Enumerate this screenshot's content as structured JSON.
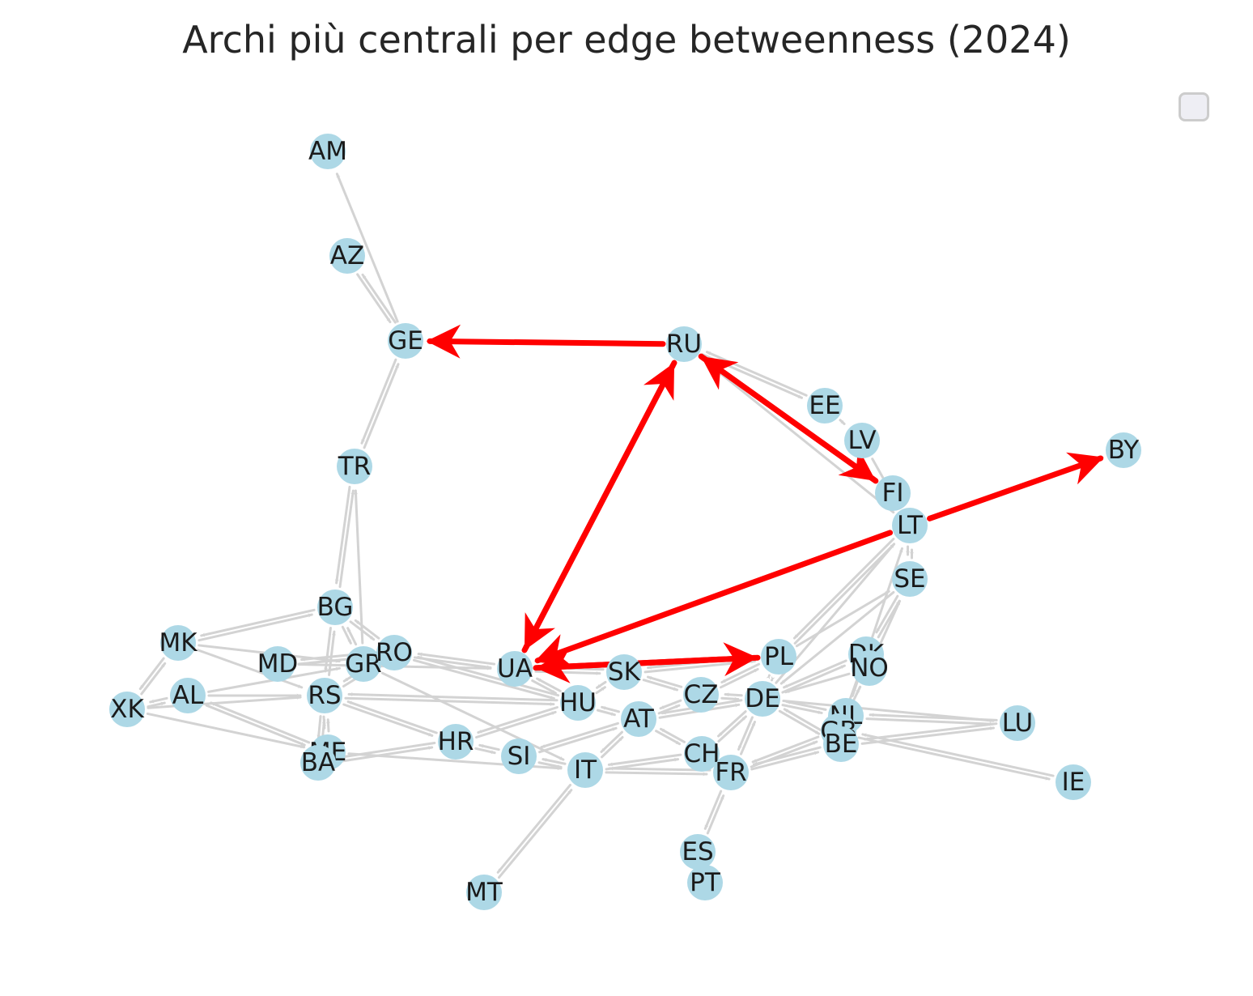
{
  "title": "Archi più centrali per edge betweenness (2024)",
  "colors": {
    "node": "#add8e6",
    "edge": "#d3d3d3",
    "highlight": "#ff0000",
    "label": "#1a1a1a"
  },
  "nodes": [
    "AM",
    "AZ",
    "GE",
    "RU",
    "EE",
    "LV",
    "BY",
    "FI",
    "LT",
    "SE",
    "TR",
    "BG",
    "MK",
    "MD",
    "GR",
    "RO",
    "UA",
    "SK",
    "PL",
    "DK",
    "NO",
    "XK",
    "AL",
    "RS",
    "HU",
    "CZ",
    "DE",
    "AT",
    "NL",
    "LU",
    "GB",
    "BE",
    "HR",
    "SI",
    "ME",
    "BA",
    "IT",
    "CH",
    "FR",
    "IE",
    "ES",
    "PT",
    "MT"
  ],
  "edges": [
    [
      "GE",
      "AM"
    ],
    [
      "AZ",
      "GE"
    ],
    [
      "GE",
      "AZ"
    ],
    [
      "TR",
      "GE"
    ],
    [
      "GE",
      "TR"
    ],
    [
      "RU",
      "EE"
    ],
    [
      "EE",
      "RU"
    ],
    [
      "EE",
      "LV"
    ],
    [
      "LV",
      "LT"
    ],
    [
      "RU",
      "FI"
    ],
    [
      "LT",
      "RU"
    ],
    [
      "LT",
      "SE"
    ],
    [
      "SE",
      "LT"
    ],
    [
      "PL",
      "LT"
    ],
    [
      "LT",
      "PL"
    ],
    [
      "DE",
      "LT"
    ],
    [
      "DK",
      "SE"
    ],
    [
      "SE",
      "DK"
    ],
    [
      "NO",
      "SE"
    ],
    [
      "PL",
      "SE"
    ],
    [
      "SE",
      "DE"
    ],
    [
      "NL",
      "LT"
    ],
    [
      "BG",
      "TR"
    ],
    [
      "TR",
      "BG"
    ],
    [
      "GR",
      "TR"
    ],
    [
      "MK",
      "BG"
    ],
    [
      "BG",
      "MK"
    ],
    [
      "BG",
      "RO"
    ],
    [
      "RO",
      "BG"
    ],
    [
      "BG",
      "GR"
    ],
    [
      "GR",
      "BG"
    ],
    [
      "BG",
      "RS"
    ],
    [
      "RS",
      "BG"
    ],
    [
      "MK",
      "GR"
    ],
    [
      "MK",
      "RS"
    ],
    [
      "MK",
      "XK"
    ],
    [
      "XK",
      "MK"
    ],
    [
      "XK",
      "AL"
    ],
    [
      "AL",
      "XK"
    ],
    [
      "XK",
      "RS"
    ],
    [
      "AL",
      "RS"
    ],
    [
      "AL",
      "GR"
    ],
    [
      "AL",
      "ME"
    ],
    [
      "ME",
      "AL"
    ],
    [
      "XK",
      "ME"
    ],
    [
      "MD",
      "RO"
    ],
    [
      "RO",
      "MD"
    ],
    [
      "MD",
      "UA"
    ],
    [
      "RO",
      "UA"
    ],
    [
      "UA",
      "RO"
    ],
    [
      "RO",
      "HU"
    ],
    [
      "HU",
      "RO"
    ],
    [
      "RS",
      "RO"
    ],
    [
      "RO",
      "RS"
    ],
    [
      "RS",
      "HU"
    ],
    [
      "HU",
      "RS"
    ],
    [
      "RS",
      "HR"
    ],
    [
      "HR",
      "RS"
    ],
    [
      "RS",
      "ME"
    ],
    [
      "ME",
      "RS"
    ],
    [
      "RS",
      "BA"
    ],
    [
      "BA",
      "RS"
    ],
    [
      "HR",
      "BA"
    ],
    [
      "BA",
      "HR"
    ],
    [
      "HR",
      "HU"
    ],
    [
      "HU",
      "HR"
    ],
    [
      "HR",
      "SI"
    ],
    [
      "SI",
      "HR"
    ],
    [
      "SI",
      "IT"
    ],
    [
      "IT",
      "SI"
    ],
    [
      "SI",
      "AT"
    ],
    [
      "AT",
      "SI"
    ],
    [
      "ME",
      "IT"
    ],
    [
      "GR",
      "IT"
    ],
    [
      "UA",
      "SK"
    ],
    [
      "SK",
      "UA"
    ],
    [
      "UA",
      "HU"
    ],
    [
      "HU",
      "UA"
    ],
    [
      "UA",
      "PL"
    ],
    [
      "SK",
      "HU"
    ],
    [
      "HU",
      "SK"
    ],
    [
      "SK",
      "CZ"
    ],
    [
      "CZ",
      "SK"
    ],
    [
      "SK",
      "PL"
    ],
    [
      "PL",
      "SK"
    ],
    [
      "HU",
      "AT"
    ],
    [
      "AT",
      "HU"
    ],
    [
      "AT",
      "CZ"
    ],
    [
      "CZ",
      "AT"
    ],
    [
      "AT",
      "DE"
    ],
    [
      "DE",
      "AT"
    ],
    [
      "AT",
      "IT"
    ],
    [
      "IT",
      "AT"
    ],
    [
      "AT",
      "CH"
    ],
    [
      "CH",
      "AT"
    ],
    [
      "CZ",
      "DE"
    ],
    [
      "DE",
      "CZ"
    ],
    [
      "PL",
      "DE"
    ],
    [
      "DE",
      "PL"
    ],
    [
      "PL",
      "CZ"
    ],
    [
      "CZ",
      "PL"
    ],
    [
      "DE",
      "DK"
    ],
    [
      "DK",
      "DE"
    ],
    [
      "DE",
      "NL"
    ],
    [
      "NL",
      "DE"
    ],
    [
      "DE",
      "BE"
    ],
    [
      "BE",
      "DE"
    ],
    [
      "DE",
      "FR"
    ],
    [
      "FR",
      "DE"
    ],
    [
      "DE",
      "CH"
    ],
    [
      "CH",
      "DE"
    ],
    [
      "DE",
      "LU"
    ],
    [
      "NO",
      "DE"
    ],
    [
      "NO",
      "NL"
    ],
    [
      "NO",
      "GB"
    ],
    [
      "DK",
      "NL"
    ],
    [
      "DK",
      "GB"
    ],
    [
      "NL",
      "BE"
    ],
    [
      "BE",
      "NL"
    ],
    [
      "NL",
      "GB"
    ],
    [
      "GB",
      "NL"
    ],
    [
      "BE",
      "GB"
    ],
    [
      "BE",
      "FR"
    ],
    [
      "FR",
      "BE"
    ],
    [
      "BE",
      "LU"
    ],
    [
      "LU",
      "BE"
    ],
    [
      "NL",
      "LU"
    ],
    [
      "LU",
      "NL"
    ],
    [
      "GB",
      "IE"
    ],
    [
      "IE",
      "GB"
    ],
    [
      "GB",
      "FR"
    ],
    [
      "FR",
      "GB"
    ],
    [
      "FR",
      "CH"
    ],
    [
      "CH",
      "FR"
    ],
    [
      "CH",
      "IT"
    ],
    [
      "IT",
      "CH"
    ],
    [
      "FR",
      "IT"
    ],
    [
      "IT",
      "FR"
    ],
    [
      "FR",
      "ES"
    ],
    [
      "ES",
      "FR"
    ],
    [
      "ES",
      "PT"
    ],
    [
      "PT",
      "ES"
    ],
    [
      "IT",
      "MT"
    ],
    [
      "MT",
      "IT"
    ]
  ],
  "central_edges": [
    [
      "RU",
      "GE"
    ],
    [
      "RU",
      "UA"
    ],
    [
      "UA",
      "RU"
    ],
    [
      "RU",
      "FI"
    ],
    [
      "FI",
      "RU"
    ],
    [
      "LT",
      "BY"
    ],
    [
      "LT",
      "UA"
    ],
    [
      "UA",
      "PL"
    ],
    [
      "PL",
      "UA"
    ]
  ]
}
